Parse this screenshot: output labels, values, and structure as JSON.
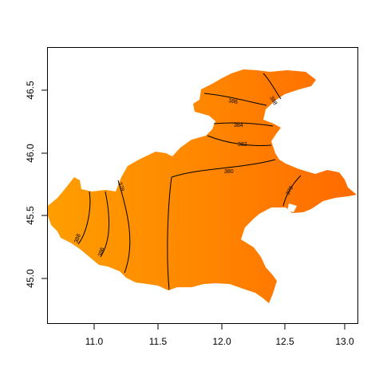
{
  "map": {
    "x_ticks": [
      "11.0",
      "11.5",
      "12.0",
      "12.5",
      "13.0"
    ],
    "y_ticks": [
      "45.0",
      "45.5",
      "46.0",
      "46.5"
    ],
    "colors": {
      "light": "#ff9e00",
      "mid": "#ff8400",
      "dark": "#ff6a00"
    },
    "contours": [
      {
        "label": "386"
      },
      {
        "label": "384"
      },
      {
        "label": "382"
      },
      {
        "label": "380"
      },
      {
        "label": "378"
      },
      {
        "label": "388"
      },
      {
        "label": "388"
      },
      {
        "label": "386"
      },
      {
        "label": "384"
      },
      {
        "label": "382"
      },
      {
        "label": "378"
      }
    ]
  }
}
